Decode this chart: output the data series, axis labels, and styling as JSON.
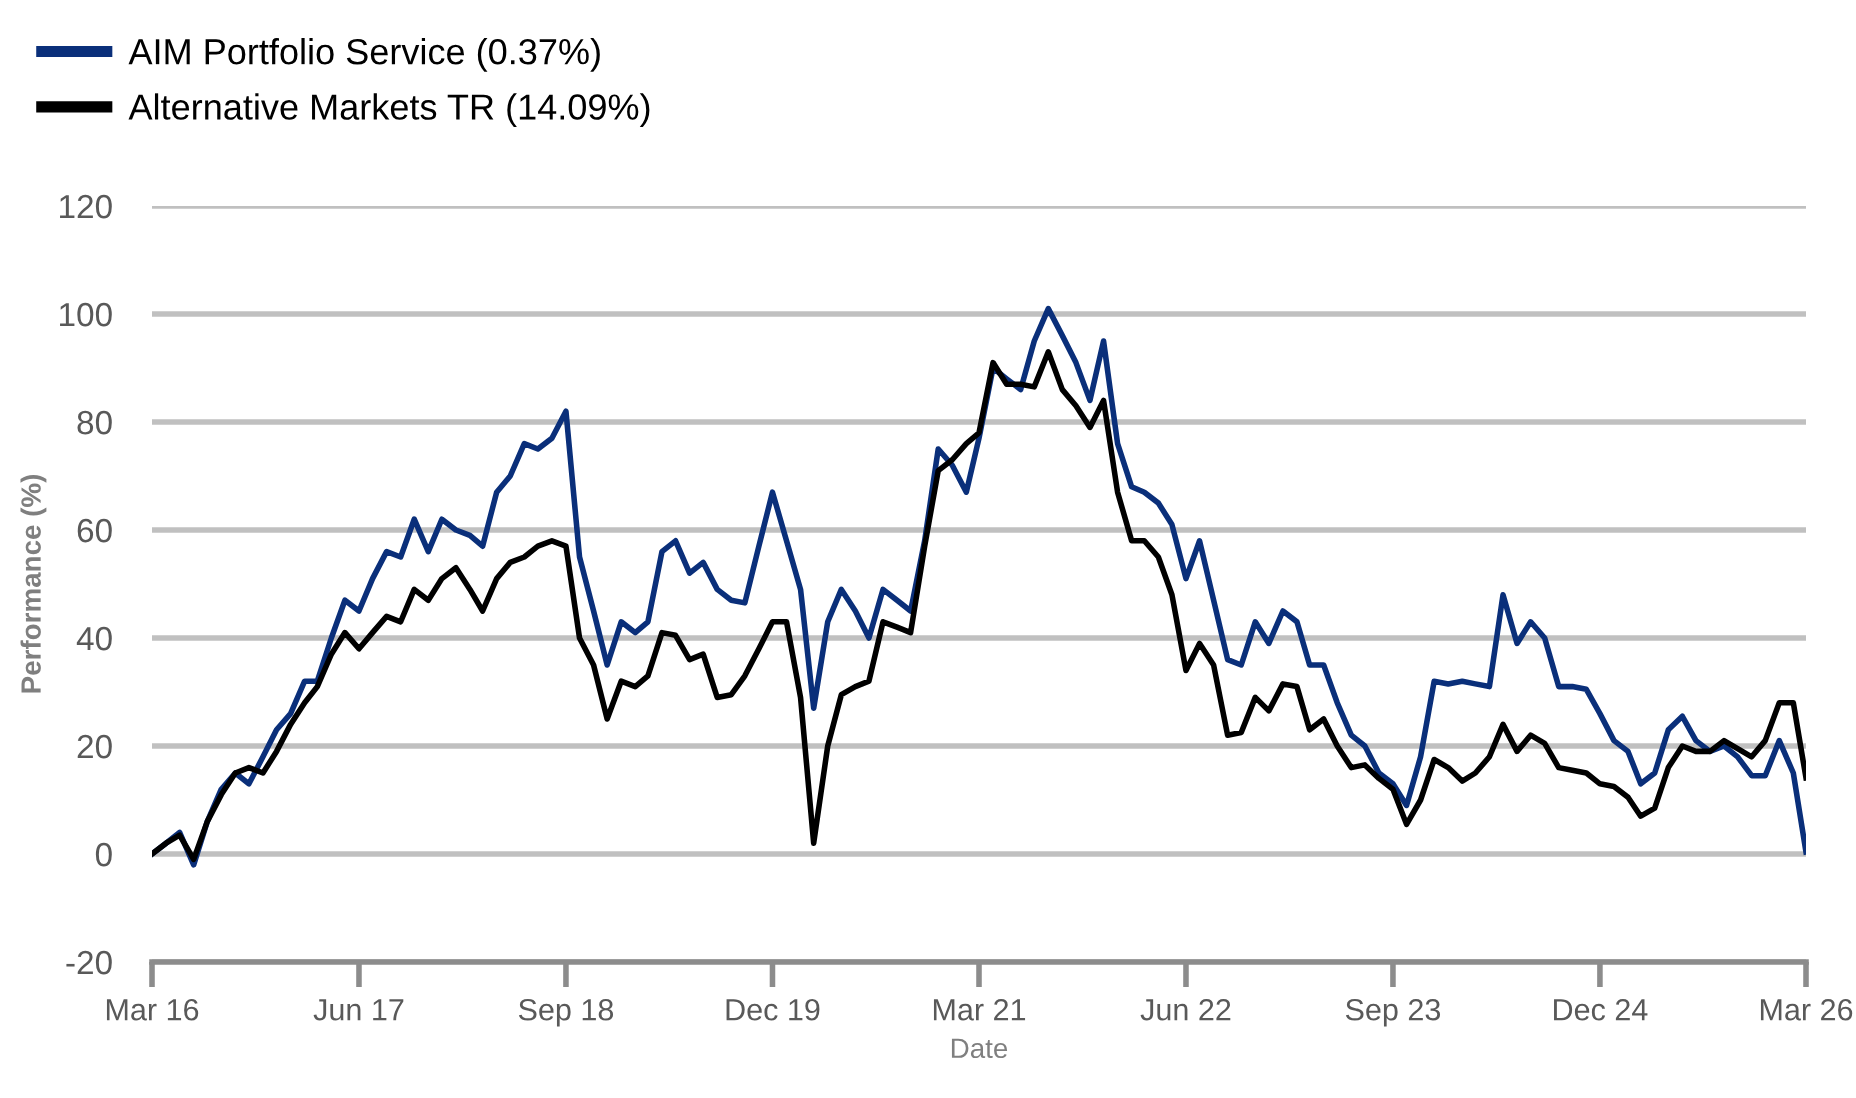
{
  "chart_data": {
    "type": "line",
    "xlabel": "Date",
    "ylabel": "Performance (%)",
    "x": [
      "2016-03",
      "2016-04",
      "2016-05",
      "2016-06",
      "2016-07",
      "2016-08",
      "2016-09",
      "2016-10",
      "2016-11",
      "2016-12",
      "2017-01",
      "2017-02",
      "2017-03",
      "2017-04",
      "2017-05",
      "2017-06",
      "2017-07",
      "2017-08",
      "2017-09",
      "2017-10",
      "2017-11",
      "2017-12",
      "2018-01",
      "2018-02",
      "2018-03",
      "2018-04",
      "2018-05",
      "2018-06",
      "2018-07",
      "2018-08",
      "2018-09",
      "2018-10",
      "2018-11",
      "2018-12",
      "2019-01",
      "2019-02",
      "2019-03",
      "2019-04",
      "2019-05",
      "2019-06",
      "2019-07",
      "2019-08",
      "2019-09",
      "2019-10",
      "2019-11",
      "2019-12",
      "2020-01",
      "2020-02",
      "2020-03",
      "2020-04",
      "2020-05",
      "2020-06",
      "2020-07",
      "2020-08",
      "2020-09",
      "2020-10",
      "2020-11",
      "2020-12",
      "2021-01",
      "2021-02",
      "2021-03",
      "2021-04",
      "2021-05",
      "2021-06",
      "2021-07",
      "2021-08",
      "2021-09",
      "2021-10",
      "2021-11",
      "2021-12",
      "2022-01",
      "2022-02",
      "2022-03",
      "2022-04",
      "2022-05",
      "2022-06",
      "2022-07",
      "2022-08",
      "2022-09",
      "2022-10",
      "2022-11",
      "2022-12",
      "2023-01",
      "2023-02",
      "2023-03",
      "2023-04",
      "2023-05",
      "2023-06",
      "2023-07",
      "2023-08",
      "2023-09",
      "2023-10",
      "2023-11",
      "2023-12",
      "2024-01",
      "2024-02",
      "2024-03",
      "2024-04",
      "2024-05",
      "2024-06",
      "2024-07",
      "2024-08",
      "2024-09",
      "2024-10",
      "2024-11",
      "2024-12",
      "2025-01",
      "2025-02",
      "2025-03",
      "2025-04",
      "2025-05",
      "2025-06",
      "2025-07",
      "2025-08",
      "2025-09",
      "2025-10",
      "2025-11",
      "2025-12",
      "2026-01",
      "2026-02",
      "2026-03"
    ],
    "series": [
      {
        "name": "AIM Portfolio Service (0.37%)",
        "color": "#0a2f7a",
        "values": [
          0,
          2,
          4,
          -2,
          6,
          12,
          15,
          13,
          18,
          23,
          26,
          32,
          32,
          40,
          47,
          45,
          51,
          56,
          55,
          62,
          56,
          62,
          60,
          59,
          57,
          67,
          70,
          76,
          75,
          77,
          82,
          55,
          45,
          35,
          43,
          41,
          43,
          56,
          58,
          52,
          54,
          49,
          47,
          46.5,
          57,
          67,
          58,
          49,
          27,
          43,
          49,
          45,
          40,
          49,
          47,
          45,
          58,
          75,
          72,
          67,
          77,
          90,
          88,
          86,
          95,
          101,
          96,
          91,
          84,
          95,
          76,
          68,
          67,
          65,
          61,
          51,
          58,
          47,
          36,
          35,
          43,
          39,
          45,
          43,
          35,
          35,
          28,
          22,
          20,
          15,
          13,
          9,
          18,
          32,
          31.5,
          32,
          31.5,
          31,
          48,
          39,
          43,
          40,
          31,
          31,
          30.5,
          26,
          21,
          19,
          13,
          15,
          23,
          25.5,
          21,
          19,
          20,
          18,
          14.5,
          14.5,
          21,
          15,
          0.37
        ]
      },
      {
        "name": "Alternative Markets TR (14.09%)",
        "color": "#000000",
        "values": [
          0,
          2,
          3.5,
          -1,
          6,
          11,
          15,
          16,
          15,
          19,
          24,
          28,
          31,
          37,
          41,
          38,
          41,
          44,
          43,
          49,
          47,
          51,
          53,
          49,
          45,
          51,
          54,
          55,
          57,
          58,
          57,
          40,
          35,
          25,
          32,
          31,
          33,
          41,
          40.5,
          36,
          37,
          29,
          29.5,
          33,
          38,
          43,
          43,
          29,
          2,
          20,
          29.5,
          31,
          32,
          43,
          42,
          41,
          57,
          71,
          73,
          76,
          78,
          91,
          87,
          87,
          86.5,
          93,
          86,
          83,
          79,
          84,
          67,
          58,
          58,
          55,
          48,
          34,
          39,
          35,
          22,
          22.5,
          29,
          26.5,
          31.5,
          31,
          23,
          25,
          20,
          16,
          16.5,
          14,
          12,
          5.5,
          10,
          17.5,
          16,
          13.5,
          15,
          18,
          24,
          19,
          22,
          20.5,
          16,
          15.5,
          15,
          13,
          12.5,
          10.5,
          7,
          8.5,
          16,
          20,
          19,
          19,
          21,
          19.5,
          18,
          21,
          28,
          28,
          14.09
        ]
      }
    ],
    "xlim": [
      "2016-03",
      "2026-03"
    ],
    "xticks": [
      {
        "value": "2016-03",
        "label": "Mar 16"
      },
      {
        "value": "2017-06",
        "label": "Jun 17"
      },
      {
        "value": "2018-09",
        "label": "Sep 18"
      },
      {
        "value": "2019-12",
        "label": "Dec 19"
      },
      {
        "value": "2021-03",
        "label": "Mar 21"
      },
      {
        "value": "2022-06",
        "label": "Jun 22"
      },
      {
        "value": "2023-09",
        "label": "Sep 23"
      },
      {
        "value": "2024-12",
        "label": "Dec 24"
      },
      {
        "value": "2026-03",
        "label": "Mar 26"
      }
    ],
    "ylim": [
      -20,
      120
    ],
    "yticks": [
      -20,
      0,
      20,
      40,
      60,
      80,
      100,
      120
    ],
    "grid": "y",
    "legend": "top left",
    "marker": "none",
    "line_style": "solid"
  }
}
